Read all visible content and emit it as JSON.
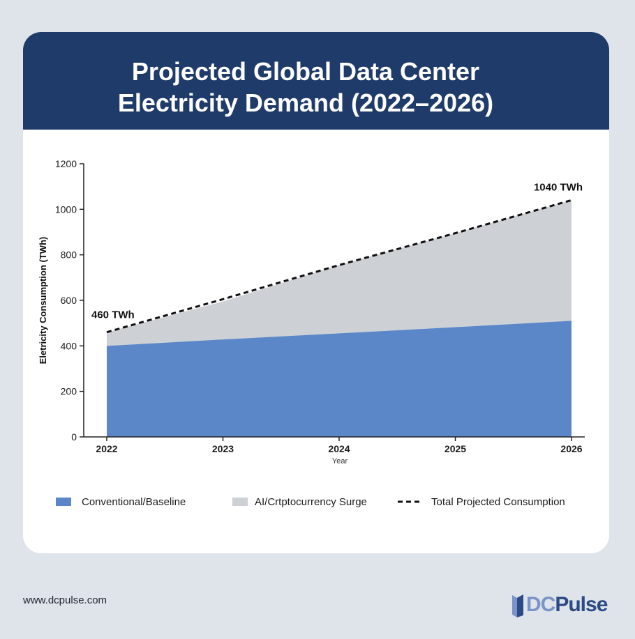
{
  "header": {
    "title_line1": "Projected Global Data Center",
    "title_line2": "Electricity Demand (2022–2026)"
  },
  "chart_data": {
    "type": "area",
    "title": "Projected Global Data Center Electricity Demand (2022–2026)",
    "xlabel": "Year",
    "ylabel": "Eletricity Consumption (TWh)",
    "categories": [
      "2022",
      "2023",
      "2024",
      "2025",
      "2026"
    ],
    "ylim": [
      0,
      1200
    ],
    "yticks": [
      0,
      200,
      400,
      600,
      800,
      1000,
      1200
    ],
    "grid": false,
    "stacked": true,
    "series": [
      {
        "name": "Conventional/Baseline",
        "type": "area",
        "color": "#5b87c9",
        "values": [
          400,
          428,
          455,
          482,
          510
        ]
      },
      {
        "name": "AI/Crtptocurrency Surge",
        "type": "area",
        "color": "#cdd0d5",
        "values": [
          60,
          167,
          300,
          413,
          530
        ]
      },
      {
        "name": "Total Projected Consumption",
        "type": "line",
        "dashed": true,
        "color": "#111111",
        "values": [
          460,
          605,
          755,
          895,
          1040
        ]
      }
    ],
    "annotations": [
      {
        "text": "460 TWh",
        "x": "2022",
        "y": 460
      },
      {
        "text": "1040 TWh",
        "x": "2026",
        "y": 1040
      }
    ],
    "legend_position": "bottom"
  },
  "footer": {
    "url": "www.dcpulse.com",
    "logo_part1": "DC",
    "logo_part2": "Pulse"
  }
}
